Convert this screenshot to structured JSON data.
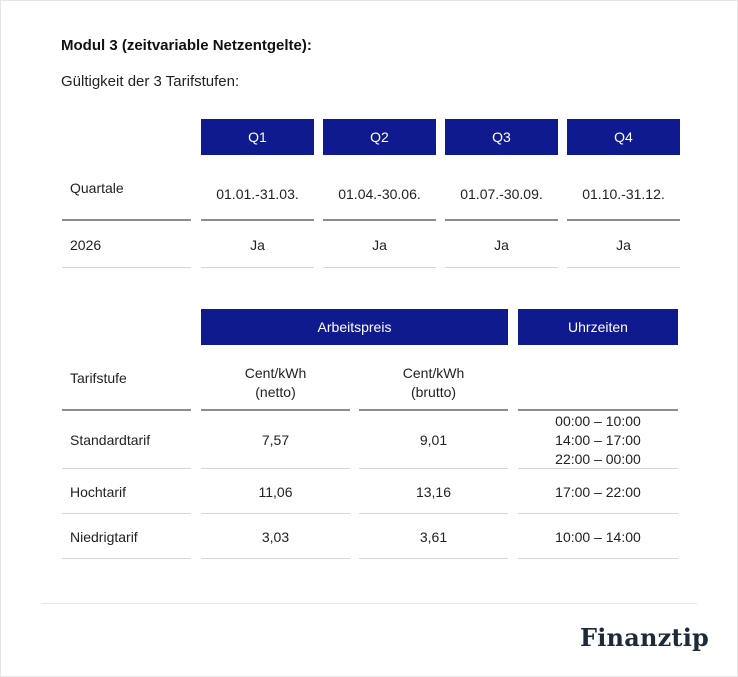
{
  "module_title": "Modul 3 (zeitvariable Netzentgelte):",
  "subtitle": "Gültigkeit der 3 Tarifstufen:",
  "quarters_table": {
    "row_label_header": "Quartale",
    "headers": [
      "Q1",
      "Q2",
      "Q3",
      "Q4"
    ],
    "periods": [
      "01.01.-31.03.",
      "01.04.-30.06.",
      "01.07.-30.09.",
      "01.10.-31.12."
    ],
    "rows": [
      {
        "label": "2026",
        "values": [
          "Ja",
          "Ja",
          "Ja",
          "Ja"
        ]
      }
    ]
  },
  "tariff_table": {
    "group_headers": {
      "price": "Arbeitspreis",
      "times": "Uhrzeiten"
    },
    "column_headers": {
      "label": "Tarifstufe",
      "netto_line1": "Cent/kWh",
      "netto_line2": "(netto)",
      "brutto_line1": "Cent/kWh",
      "brutto_line2": "(brutto)"
    },
    "rows": [
      {
        "label": "Standardtarif",
        "netto": "7,57",
        "brutto": "9,01",
        "times": [
          "00:00 – 10:00",
          "14:00 – 17:00",
          "22:00 – 00:00"
        ]
      },
      {
        "label": "Hochtarif",
        "netto": "11,06",
        "brutto": "13,16",
        "times": [
          "17:00 – 22:00"
        ]
      },
      {
        "label": "Niedrigtarif",
        "netto": "3,03",
        "brutto": "3,61",
        "times": [
          "10:00 – 14:00"
        ]
      }
    ]
  },
  "brand": "Finanztip",
  "colors": {
    "header_blue": "#0f1a8f",
    "brand_text": "#1d2a3a"
  }
}
